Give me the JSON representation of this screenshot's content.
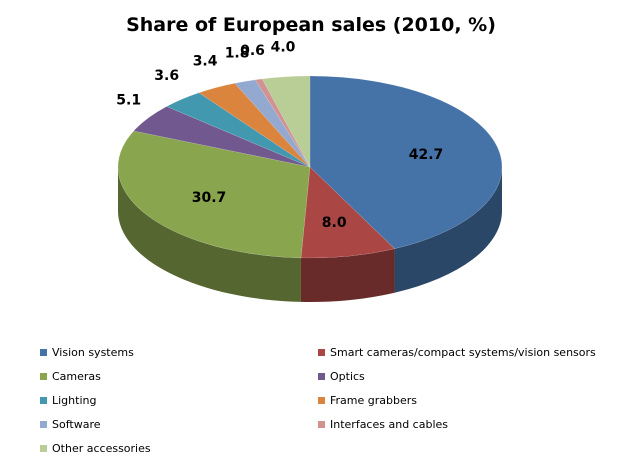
{
  "chart_data": {
    "type": "pie",
    "title": "Share of European sales (2010, %)",
    "categories": [
      "Vision systems",
      "Smart cameras/compact systems/vision sensors",
      "Cameras",
      "Optics",
      "Lighting",
      "Frame grabbers",
      "Software",
      "Interfaces and cables",
      "Other accessories"
    ],
    "values": [
      42.7,
      8.0,
      30.7,
      5.1,
      3.6,
      3.4,
      1.8,
      0.6,
      4.0
    ],
    "data_labels": [
      "42.7",
      "8.0",
      "30.7",
      "5.1",
      "3.6",
      "3.4",
      "1.8",
      "0.6",
      "4.0"
    ],
    "colors": [
      "#4572A7",
      "#AA4643",
      "#89A54E",
      "#71588F",
      "#4198AF",
      "#DB843D",
      "#93A9CF",
      "#D19392",
      "#B9CD96"
    ],
    "legend_position": "bottom",
    "style": "3d"
  }
}
